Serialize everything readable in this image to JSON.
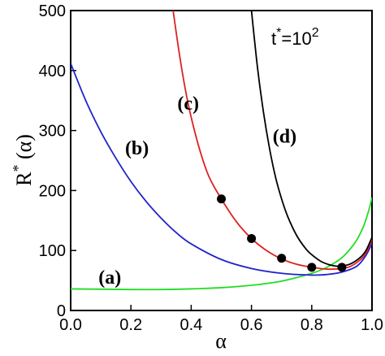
{
  "chart_data": {
    "type": "line",
    "xlabel": "α",
    "ylabel": "R* (α)",
    "ylabel_parts": {
      "main": "R",
      "sup": "*",
      "rest": " (α)"
    },
    "xlim": [
      0,
      1
    ],
    "ylim": [
      0,
      500
    ],
    "x_ticks": [
      "0.0",
      "0.2",
      "0.4",
      "0.6",
      "0.8",
      "1.0"
    ],
    "y_ticks": [
      "0",
      "100",
      "200",
      "300",
      "400",
      "500"
    ],
    "x_tick_values": [
      0,
      0.2,
      0.4,
      0.6,
      0.8,
      1.0
    ],
    "y_tick_values": [
      0,
      100,
      200,
      300,
      400,
      500
    ],
    "grid": false,
    "annotation": {
      "text": "t*=10^2",
      "parts": {
        "t": "t",
        "star": "*",
        "eq": "=10",
        "exp": "2"
      }
    },
    "series": [
      {
        "label": "(a)",
        "color": "#22dd22",
        "x": [
          0,
          0.1,
          0.2,
          0.3,
          0.4,
          0.5,
          0.6,
          0.7,
          0.8,
          0.85,
          0.9,
          0.93,
          0.95,
          0.97,
          0.98,
          0.99,
          1.0
        ],
        "y": [
          36,
          35.5,
          35,
          35,
          36,
          38,
          42,
          49,
          62,
          72,
          88,
          104,
          118,
          138,
          152,
          168,
          188
        ]
      },
      {
        "label": "(b)",
        "color": "#2222cc",
        "x": [
          0,
          0.05,
          0.1,
          0.15,
          0.2,
          0.25,
          0.3,
          0.35,
          0.4,
          0.5,
          0.6,
          0.7,
          0.8,
          0.85,
          0.9,
          0.95,
          0.98,
          1.0
        ],
        "y": [
          412,
          350,
          298,
          254,
          215,
          182,
          154,
          130,
          111,
          85,
          70,
          62,
          59,
          60,
          64,
          74,
          92,
          112
        ]
      },
      {
        "label": "(c)",
        "color": "#dd2222",
        "x": [
          0.34,
          0.36,
          0.38,
          0.4,
          0.43,
          0.46,
          0.5,
          0.55,
          0.6,
          0.65,
          0.7,
          0.75,
          0.8,
          0.85,
          0.9,
          0.93,
          0.96,
          0.98,
          1.0
        ],
        "y": [
          500,
          430,
          370,
          322,
          265,
          222,
          186,
          148,
          120,
          100,
          86,
          77,
          72,
          69,
          70,
          74,
          84,
          96,
          118
        ]
      },
      {
        "label": "(d)",
        "color": "#000000",
        "x": [
          0.6,
          0.62,
          0.64,
          0.66,
          0.68,
          0.7,
          0.72,
          0.75,
          0.78,
          0.8,
          0.83,
          0.86,
          0.88,
          0.9,
          0.93,
          0.96,
          0.98,
          1.0
        ],
        "y": [
          500,
          405,
          330,
          270,
          222,
          186,
          157,
          125,
          103,
          93,
          82,
          76,
          74,
          74,
          78,
          88,
          100,
          122
        ]
      }
    ],
    "markers": {
      "color": "#000000",
      "x": [
        0.5,
        0.6,
        0.7,
        0.8,
        0.9
      ],
      "y": [
        186,
        120,
        87,
        72,
        72
      ]
    },
    "series_label_positions": [
      {
        "label": "(a)",
        "x": 0.13,
        "y": 45
      },
      {
        "label": "(b)",
        "x": 0.22,
        "y": 260
      },
      {
        "label": "(c)",
        "x": 0.39,
        "y": 335
      },
      {
        "label": "(d)",
        "x": 0.71,
        "y": 280
      }
    ]
  }
}
